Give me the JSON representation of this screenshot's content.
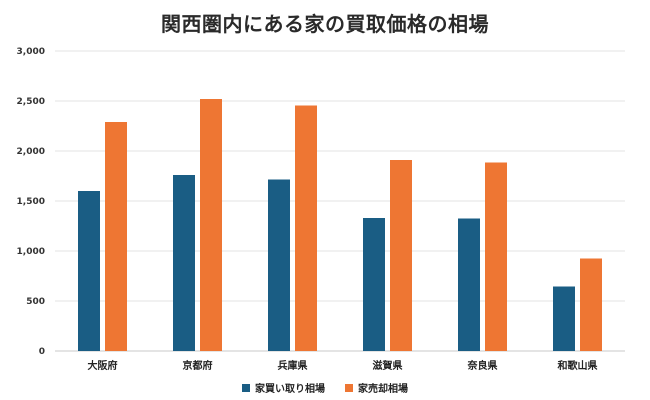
{
  "chart_data": {
    "type": "bar",
    "title": "関西圏内にある家の買取価格の相場",
    "categories": [
      "大阪府",
      "京都府",
      "兵庫県",
      "滋賀県",
      "奈良県",
      "和歌山県"
    ],
    "series": [
      {
        "name": "家買い取り相場",
        "color": "#1a5d84",
        "values": [
          1600,
          1760,
          1715,
          1330,
          1325,
          645
        ]
      },
      {
        "name": "家売却相場",
        "color": "#ee7633",
        "values": [
          2290,
          2520,
          2455,
          1910,
          1885,
          925
        ]
      }
    ],
    "yticks": [
      "0",
      "500",
      "1,000",
      "1,500",
      "2,000",
      "2,500",
      "3,000"
    ],
    "ylim": [
      0,
      3000
    ],
    "grid": true,
    "legend_position": "bottom"
  }
}
